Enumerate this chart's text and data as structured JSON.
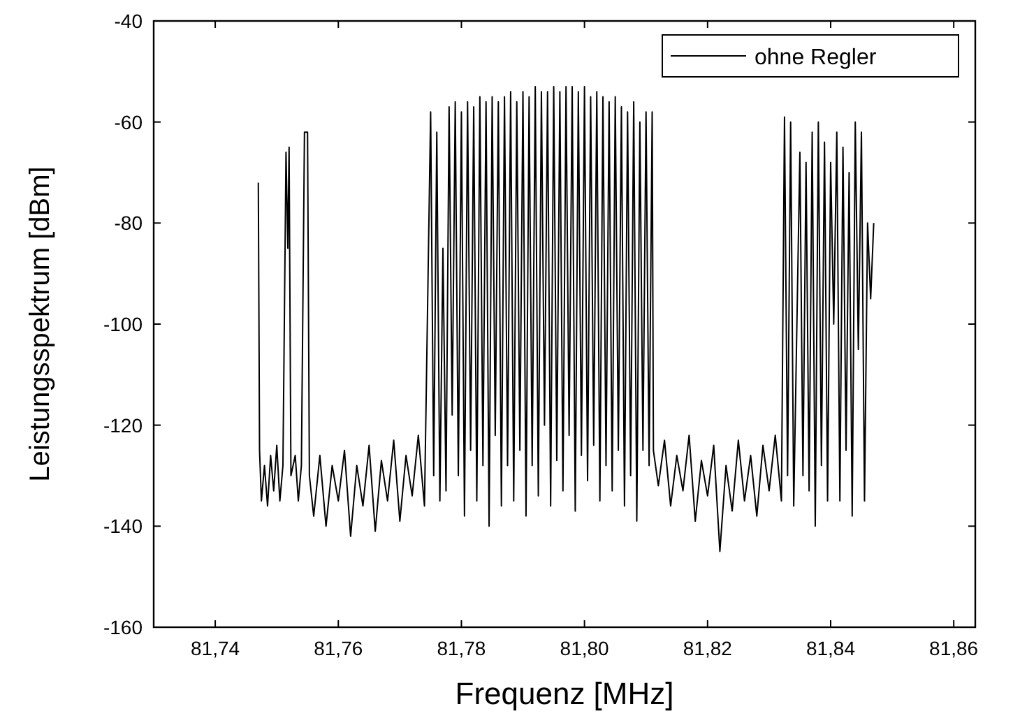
{
  "chart_data": {
    "type": "line",
    "xlabel": "Frequenz [MHz]",
    "ylabel": "Leistungsspektrum [dBm]",
    "xlim": [
      81.73,
      81.8635
    ],
    "ylim": [
      -160,
      -40
    ],
    "xticks": [
      {
        "value": 81.74,
        "label": "81,74"
      },
      {
        "value": 81.76,
        "label": "81,76"
      },
      {
        "value": 81.78,
        "label": "81,78"
      },
      {
        "value": 81.8,
        "label": "81,80"
      },
      {
        "value": 81.82,
        "label": "81,82"
      },
      {
        "value": 81.84,
        "label": "81,84"
      },
      {
        "value": 81.86,
        "label": "81,86"
      }
    ],
    "yticks": [
      -160,
      -140,
      -120,
      -100,
      -80,
      -60,
      -40
    ],
    "grid": false,
    "legend": "top right",
    "marker": "none",
    "line_style": "solid",
    "series": [
      {
        "name": "ohne Regler",
        "color": "#000000",
        "x": [
          81.747,
          81.7472,
          81.7475,
          81.748,
          81.7485,
          81.749,
          81.7495,
          81.75,
          81.7505,
          81.751,
          81.7515,
          81.7518,
          81.752,
          81.7523,
          81.753,
          81.7535,
          81.754,
          81.7545,
          81.755,
          81.7553,
          81.756,
          81.757,
          81.758,
          81.759,
          81.76,
          81.761,
          81.762,
          81.763,
          81.764,
          81.765,
          81.766,
          81.767,
          81.768,
          81.769,
          81.77,
          81.771,
          81.772,
          81.773,
          81.774,
          81.775,
          81.7755,
          81.776,
          81.7765,
          81.777,
          81.7775,
          81.778,
          81.7785,
          81.779,
          81.7795,
          81.78,
          81.7805,
          81.781,
          81.7815,
          81.782,
          81.7825,
          81.783,
          81.7835,
          81.784,
          81.7845,
          81.785,
          81.7855,
          81.786,
          81.7865,
          81.787,
          81.7875,
          81.788,
          81.7885,
          81.789,
          81.7895,
          81.79,
          81.7905,
          81.791,
          81.7915,
          81.792,
          81.7925,
          81.793,
          81.7935,
          81.794,
          81.7945,
          81.795,
          81.7955,
          81.796,
          81.7965,
          81.797,
          81.7975,
          81.798,
          81.7985,
          81.799,
          81.7995,
          81.8,
          81.8005,
          81.801,
          81.8015,
          81.802,
          81.8025,
          81.803,
          81.8035,
          81.804,
          81.8045,
          81.805,
          81.8055,
          81.806,
          81.8065,
          81.807,
          81.8075,
          81.808,
          81.8085,
          81.809,
          81.8095,
          81.81,
          81.8105,
          81.811,
          81.8112,
          81.812,
          81.813,
          81.814,
          81.815,
          81.816,
          81.817,
          81.818,
          81.819,
          81.82,
          81.821,
          81.822,
          81.823,
          81.824,
          81.825,
          81.826,
          81.827,
          81.828,
          81.829,
          81.83,
          81.831,
          81.832,
          81.8325,
          81.833,
          81.8335,
          81.834,
          81.835,
          81.8355,
          81.836,
          81.8365,
          81.837,
          81.8375,
          81.838,
          81.8385,
          81.839,
          81.8395,
          81.84,
          81.8405,
          81.841,
          81.8415,
          81.842,
          81.8425,
          81.843,
          81.8435,
          81.844,
          81.8445,
          81.845,
          81.8455,
          81.846,
          81.8465,
          81.847
        ],
        "values": [
          -72,
          -125,
          -135,
          -128,
          -136,
          -126,
          -133,
          -124,
          -135,
          -128,
          -66,
          -85,
          -65,
          -130,
          -126,
          -135,
          -128,
          -62,
          -62,
          -130,
          -138,
          -126,
          -140,
          -128,
          -135,
          -125,
          -142,
          -128,
          -136,
          -124,
          -141,
          -127,
          -135,
          -123,
          -139,
          -126,
          -134,
          -122,
          -136,
          -58,
          -130,
          -62,
          -135,
          -85,
          -133,
          -57,
          -118,
          -56,
          -130,
          -58,
          -138,
          -56,
          -125,
          -57,
          -135,
          -55,
          -128,
          -56,
          -140,
          -55,
          -122,
          -56,
          -136,
          -55,
          -128,
          -54,
          -135,
          -56,
          -125,
          -54,
          -138,
          -55,
          -128,
          -53,
          -134,
          -54,
          -120,
          -54,
          -136,
          -53,
          -127,
          -54,
          -133,
          -53,
          -122,
          -53,
          -137,
          -54,
          -126,
          -53,
          -131,
          -55,
          -124,
          -54,
          -135,
          -55,
          -128,
          -56,
          -133,
          -55,
          -125,
          -57,
          -136,
          -58,
          -130,
          -56,
          -139,
          -60,
          -125,
          -58,
          -128,
          -58,
          -125,
          -132,
          -123,
          -136,
          -126,
          -133,
          -122,
          -139,
          -127,
          -134,
          -124,
          -145,
          -128,
          -137,
          -123,
          -135,
          -126,
          -138,
          -124,
          -133,
          -122,
          -135,
          -59,
          -130,
          -60,
          -136,
          -66,
          -130,
          -68,
          -133,
          -62,
          -140,
          -60,
          -128,
          -64,
          -135,
          -68,
          -100,
          -62,
          -135,
          -65,
          -125,
          -70,
          -138,
          -60,
          -105,
          -62,
          -135,
          -80,
          -95,
          -80
        ]
      }
    ]
  }
}
